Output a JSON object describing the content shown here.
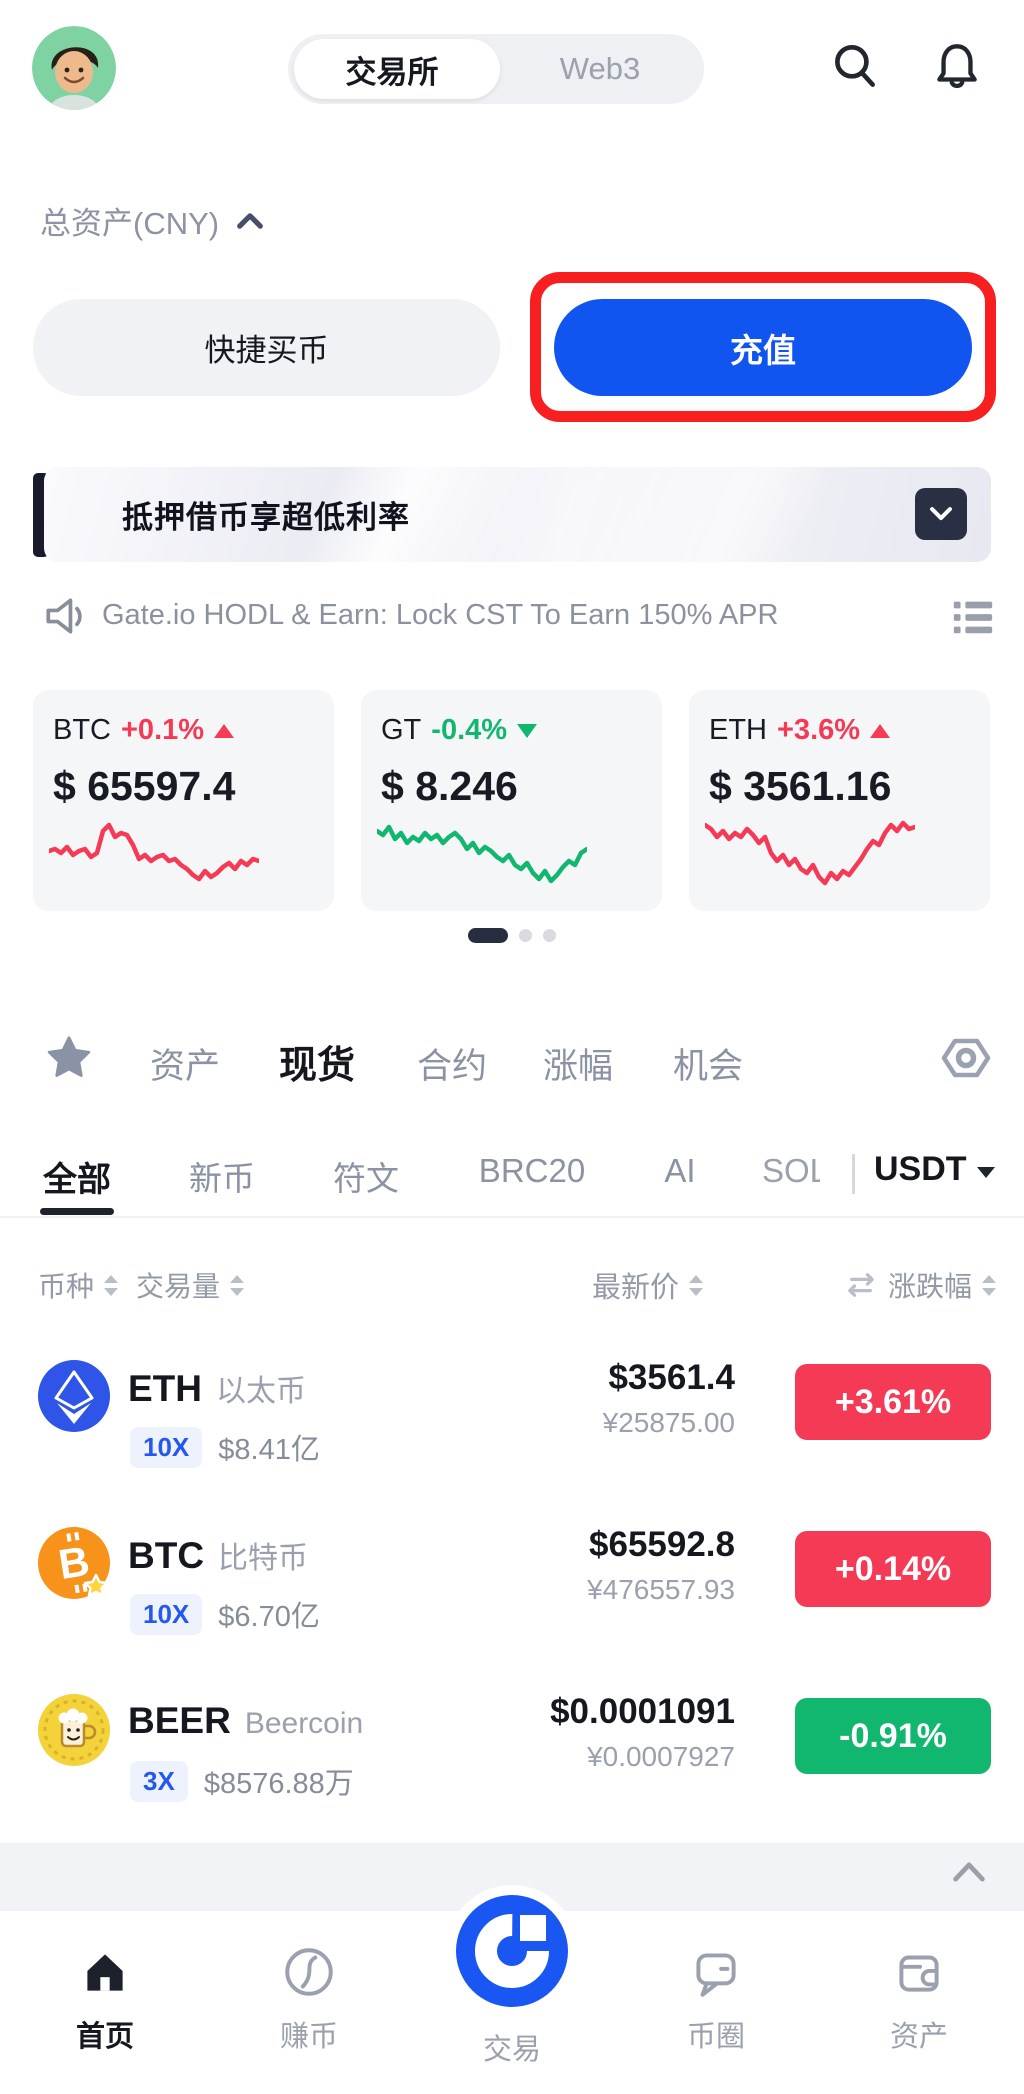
{
  "topbar": {
    "segment": {
      "left": "交易所",
      "right": "Web3"
    }
  },
  "assets_label": "总资产(CNY)",
  "buttons": {
    "quick_buy": "快捷买币",
    "deposit": "充值"
  },
  "annotation": {
    "target": "充值",
    "color": "#f71f1f"
  },
  "banner": {
    "title": "抵押借币享超低利率"
  },
  "announcement": {
    "text": "Gate.io HODL & Earn: Lock CST To Earn 150% APR"
  },
  "market_cards": [
    {
      "symbol": "BTC",
      "change": "+0.1%",
      "direction": "up",
      "price": "$ 65597.4",
      "points": [
        20,
        19,
        21,
        18,
        22,
        20,
        19,
        23,
        21,
        10,
        7,
        13,
        11,
        12,
        17,
        24,
        22,
        25,
        23,
        22,
        25,
        24,
        27,
        29,
        32,
        34,
        30,
        33,
        31,
        28,
        26,
        29,
        25,
        27,
        24,
        25
      ]
    },
    {
      "symbol": "GT",
      "change": "-0.4%",
      "direction": "down",
      "price": "$ 8.246",
      "points": [
        10,
        12,
        8,
        14,
        11,
        16,
        13,
        15,
        11,
        14,
        12,
        16,
        13,
        11,
        14,
        19,
        16,
        21,
        18,
        20,
        23,
        25,
        22,
        27,
        29,
        26,
        31,
        34,
        30,
        35,
        32,
        28,
        25,
        27,
        21,
        19
      ]
    },
    {
      "symbol": "ETH",
      "change": "+3.6%",
      "direction": "up",
      "price": "$ 3561.16",
      "points": [
        7,
        9,
        13,
        10,
        14,
        11,
        13,
        9,
        12,
        16,
        13,
        21,
        25,
        22,
        27,
        24,
        29,
        31,
        27,
        33,
        36,
        31,
        34,
        30,
        32,
        28,
        24,
        19,
        15,
        17,
        11,
        7,
        10,
        6,
        9,
        8
      ]
    }
  ],
  "main_tabs": [
    {
      "label": "资产"
    },
    {
      "label": "现货",
      "active": true
    },
    {
      "label": "合约"
    },
    {
      "label": "涨幅"
    },
    {
      "label": "机会"
    }
  ],
  "sub_tabs": [
    {
      "label": "全部",
      "active": true
    },
    {
      "label": "新币"
    },
    {
      "label": "符文"
    },
    {
      "label": "BRC20"
    },
    {
      "label": "AI"
    },
    {
      "label": "SOL"
    }
  ],
  "quote_selector": "USDT",
  "table": {
    "header": {
      "coin": "币种",
      "volume": "交易量",
      "price": "最新价",
      "change": "涨跌幅"
    },
    "rows": [
      {
        "symbol": "ETH",
        "name": "以太币",
        "leverage": "10X",
        "volume": "$8.41亿",
        "price": "$3561.4",
        "price_cny": "¥25875.00",
        "change": "+3.61%",
        "trend": "up"
      },
      {
        "symbol": "BTC",
        "name": "比特币",
        "leverage": "10X",
        "volume": "$6.70亿",
        "price": "$65592.8",
        "price_cny": "¥476557.93",
        "change": "+0.14%",
        "trend": "up"
      },
      {
        "symbol": "BEER",
        "name": "Beercoin",
        "leverage": "3X",
        "volume": "$8576.88万",
        "price": "$0.0001091",
        "price_cny": "¥0.0007927",
        "change": "-0.91%",
        "trend": "down"
      }
    ]
  },
  "bottom_nav": [
    {
      "label": "首页",
      "active": true
    },
    {
      "label": "赚币"
    },
    {
      "label": "交易"
    },
    {
      "label": "币圈"
    },
    {
      "label": "资产"
    }
  ],
  "colors": {
    "up": "#f43a55",
    "down": "#12b76f",
    "accent_blue": "#1155f0",
    "annotation_red": "#f71f1f"
  }
}
